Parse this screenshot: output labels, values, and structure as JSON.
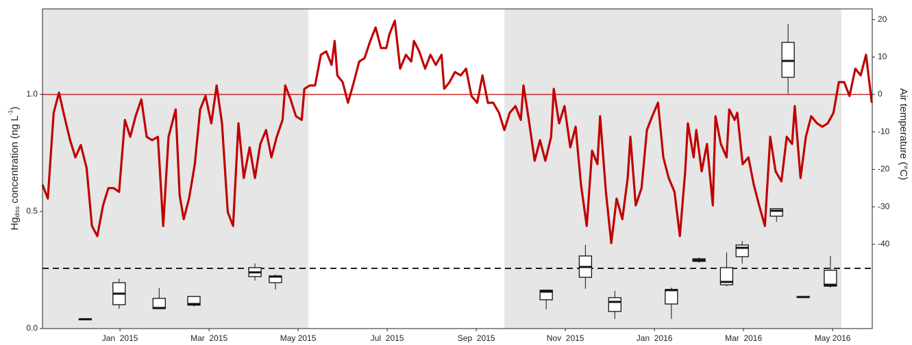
{
  "chart_data": {
    "type": "box",
    "xlim": [
      -1.74,
      16.89
    ],
    "ylim": [
      0,
      1.365
    ],
    "y2lim": [
      -62.5,
      22.85
    ],
    "xticks": [
      {
        "value": 0,
        "label": "Jan  2015"
      },
      {
        "value": 2,
        "label": "Mar  2015"
      },
      {
        "value": 4,
        "label": "May 2015"
      },
      {
        "value": 6,
        "label": "Jul  2015"
      },
      {
        "value": 8,
        "label": "Sep  2015"
      },
      {
        "value": 10,
        "label": "Nov  2015"
      },
      {
        "value": 12,
        "label": "Jan  2016"
      },
      {
        "value": 14,
        "label": "Mar  2016"
      },
      {
        "value": 16,
        "label": "May 2016"
      }
    ],
    "yticks": [
      {
        "value": 0,
        "label": "0.0"
      },
      {
        "value": 0.5,
        "label": "0.5"
      },
      {
        "value": 1,
        "label": "1.0"
      }
    ],
    "y2ticks": [
      -40,
      -30,
      -20,
      -10,
      0,
      10,
      20
    ],
    "ylabel": {
      "base": "Hg",
      "sub": "diss",
      "text": " concentration (ng L",
      "sup": "-1",
      "end": ")"
    },
    "y2label": "Air temperature (°C)",
    "shaded_regions": [
      [
        -1.74,
        4.23
      ],
      [
        8.63,
        16.2
      ]
    ],
    "shade_color": "#e6e6e6",
    "ref_lines": [
      {
        "axis": "y2",
        "value": 0,
        "color": "#c00000",
        "dashed": false
      },
      {
        "axis": "y",
        "value": 0.257,
        "color": "#111111",
        "dashed": true
      }
    ],
    "boxes": {
      "color": "#111111",
      "x": [
        -0.78,
        -0.02,
        0.88,
        1.66,
        3.03,
        3.49,
        9.57,
        10.45,
        11.11,
        12.38,
        13.0,
        13.62,
        13.97,
        14.74,
        15.0,
        15.34,
        15.95
      ],
      "whislo": [
        0.038,
        0.085,
        0.085,
        0.094,
        0.205,
        0.167,
        0.082,
        0.17,
        0.041,
        0.041,
        0.281,
        0.181,
        0.278,
        0.456,
        1.003,
        0.133,
        0.175
      ],
      "q1": [
        0.038,
        0.102,
        0.085,
        0.1,
        0.222,
        0.196,
        0.123,
        0.219,
        0.073,
        0.105,
        0.287,
        0.187,
        0.307,
        0.48,
        1.073,
        0.133,
        0.181
      ],
      "med": [
        0.04,
        0.149,
        0.088,
        0.105,
        0.24,
        0.222,
        0.158,
        0.263,
        0.114,
        0.164,
        0.292,
        0.199,
        0.345,
        0.503,
        1.143,
        0.135,
        0.187
      ],
      "q3": [
        0.042,
        0.196,
        0.129,
        0.137,
        0.26,
        0.225,
        0.164,
        0.31,
        0.132,
        0.167,
        0.298,
        0.26,
        0.357,
        0.512,
        1.222,
        0.137,
        0.249
      ],
      "whishi": [
        0.042,
        0.213,
        0.173,
        0.137,
        0.278,
        0.231,
        0.164,
        0.357,
        0.161,
        0.175,
        0.304,
        0.325,
        0.374,
        0.512,
        1.301,
        0.137,
        0.31
      ]
    },
    "series": [
      {
        "type": "line",
        "axis": "y2",
        "color": "#c00000",
        "x": [
          -1.74,
          -1.62,
          -1.49,
          -1.37,
          -1.25,
          -1.12,
          -1.0,
          -0.88,
          -0.75,
          -0.63,
          -0.51,
          -0.38,
          -0.26,
          -0.14,
          -0.02,
          0.11,
          0.23,
          0.35,
          0.48,
          0.6,
          0.72,
          0.85,
          0.97,
          1.09,
          1.25,
          1.34,
          1.43,
          1.55,
          1.68,
          1.8,
          1.92,
          2.05,
          2.17,
          2.29,
          2.42,
          2.54,
          2.66,
          2.78,
          2.91,
          3.03,
          3.15,
          3.28,
          3.4,
          3.52,
          3.65,
          3.71,
          3.83,
          3.95,
          4.08,
          4.14,
          4.26,
          4.38,
          4.51,
          4.63,
          4.75,
          4.82,
          4.88,
          5.0,
          5.12,
          5.25,
          5.37,
          5.49,
          5.62,
          5.74,
          5.86,
          5.98,
          6.05,
          6.17,
          6.29,
          6.42,
          6.54,
          6.6,
          6.72,
          6.85,
          6.97,
          7.09,
          7.22,
          7.28,
          7.4,
          7.52,
          7.65,
          7.77,
          7.89,
          8.02,
          8.14,
          8.26,
          8.38,
          8.51,
          8.63,
          8.75,
          8.88,
          9.0,
          9.06,
          9.18,
          9.31,
          9.43,
          9.55,
          9.68,
          9.74,
          9.86,
          9.98,
          10.11,
          10.23,
          10.35,
          10.48,
          10.6,
          10.72,
          10.78,
          10.91,
          11.03,
          11.15,
          11.28,
          11.4,
          11.46,
          11.58,
          11.71,
          11.83,
          11.95,
          12.08,
          12.2,
          12.32,
          12.45,
          12.57,
          12.69,
          12.75,
          12.88,
          12.94,
          13.06,
          13.18,
          13.31,
          13.37,
          13.49,
          13.62,
          13.68,
          13.8,
          13.86,
          13.98,
          14.11,
          14.23,
          14.35,
          14.48,
          14.6,
          14.72,
          14.85,
          14.97,
          15.09,
          15.15,
          15.28,
          15.4,
          15.52,
          15.65,
          15.77,
          15.89,
          16.02,
          16.14,
          16.26,
          16.38,
          16.51,
          16.63,
          16.75,
          16.88
        ],
        "values": [
          -24.1,
          -27.8,
          -4.9,
          0.5,
          -5.8,
          -12.2,
          -16.8,
          -13.5,
          -19.6,
          -35.1,
          -37.8,
          -29.6,
          -25.0,
          -25.0,
          -26.0,
          -6.8,
          -11.3,
          -5.8,
          -1.3,
          -11.3,
          -12.2,
          -11.3,
          -35.1,
          -11.3,
          -4.0,
          -26.9,
          -33.3,
          -27.8,
          -18.6,
          -4.0,
          -0.4,
          -7.7,
          2.4,
          -7.7,
          -31.4,
          -35.1,
          -7.7,
          -22.3,
          -14.1,
          -22.3,
          -13.2,
          -9.5,
          -16.8,
          -11.3,
          -6.8,
          2.4,
          -1.3,
          -5.8,
          -6.8,
          1.5,
          2.4,
          2.4,
          10.6,
          11.5,
          7.9,
          14.3,
          5.1,
          3.3,
          -2.2,
          3.3,
          8.8,
          9.7,
          14.3,
          17.9,
          12.4,
          12.4,
          16.1,
          19.7,
          6.9,
          10.6,
          8.8,
          14.3,
          11.5,
          6.9,
          10.6,
          7.9,
          10.6,
          1.5,
          3.3,
          6.0,
          5.1,
          6.9,
          -0.4,
          -2.2,
          5.1,
          -2.2,
          -2.2,
          -4.9,
          -9.5,
          -4.9,
          -3.1,
          -6.8,
          2.4,
          -6.8,
          -17.7,
          -12.2,
          -17.7,
          -11.3,
          1.5,
          -7.7,
          -3.1,
          -14.1,
          -8.6,
          -24.1,
          -35.1,
          -15.0,
          -18.6,
          -5.8,
          -26.0,
          -39.7,
          -27.8,
          -33.3,
          -22.3,
          -11.3,
          -29.6,
          -25.0,
          -9.5,
          -5.8,
          -2.2,
          -16.8,
          -22.3,
          -26.0,
          -37.8,
          -20.5,
          -7.7,
          -16.8,
          -9.5,
          -20.5,
          -13.2,
          -29.6,
          -5.8,
          -13.2,
          -16.8,
          -4.0,
          -6.8,
          -4.9,
          -18.6,
          -16.8,
          -24.1,
          -29.6,
          -35.1,
          -11.3,
          -20.5,
          -23.2,
          -11.3,
          -13.2,
          -3.1,
          -22.3,
          -11.3,
          -5.8,
          -7.7,
          -8.6,
          -7.7,
          -4.9,
          3.3,
          3.3,
          -0.4,
          6.9,
          5.1,
          10.6,
          -2.2
        ]
      }
    ]
  }
}
